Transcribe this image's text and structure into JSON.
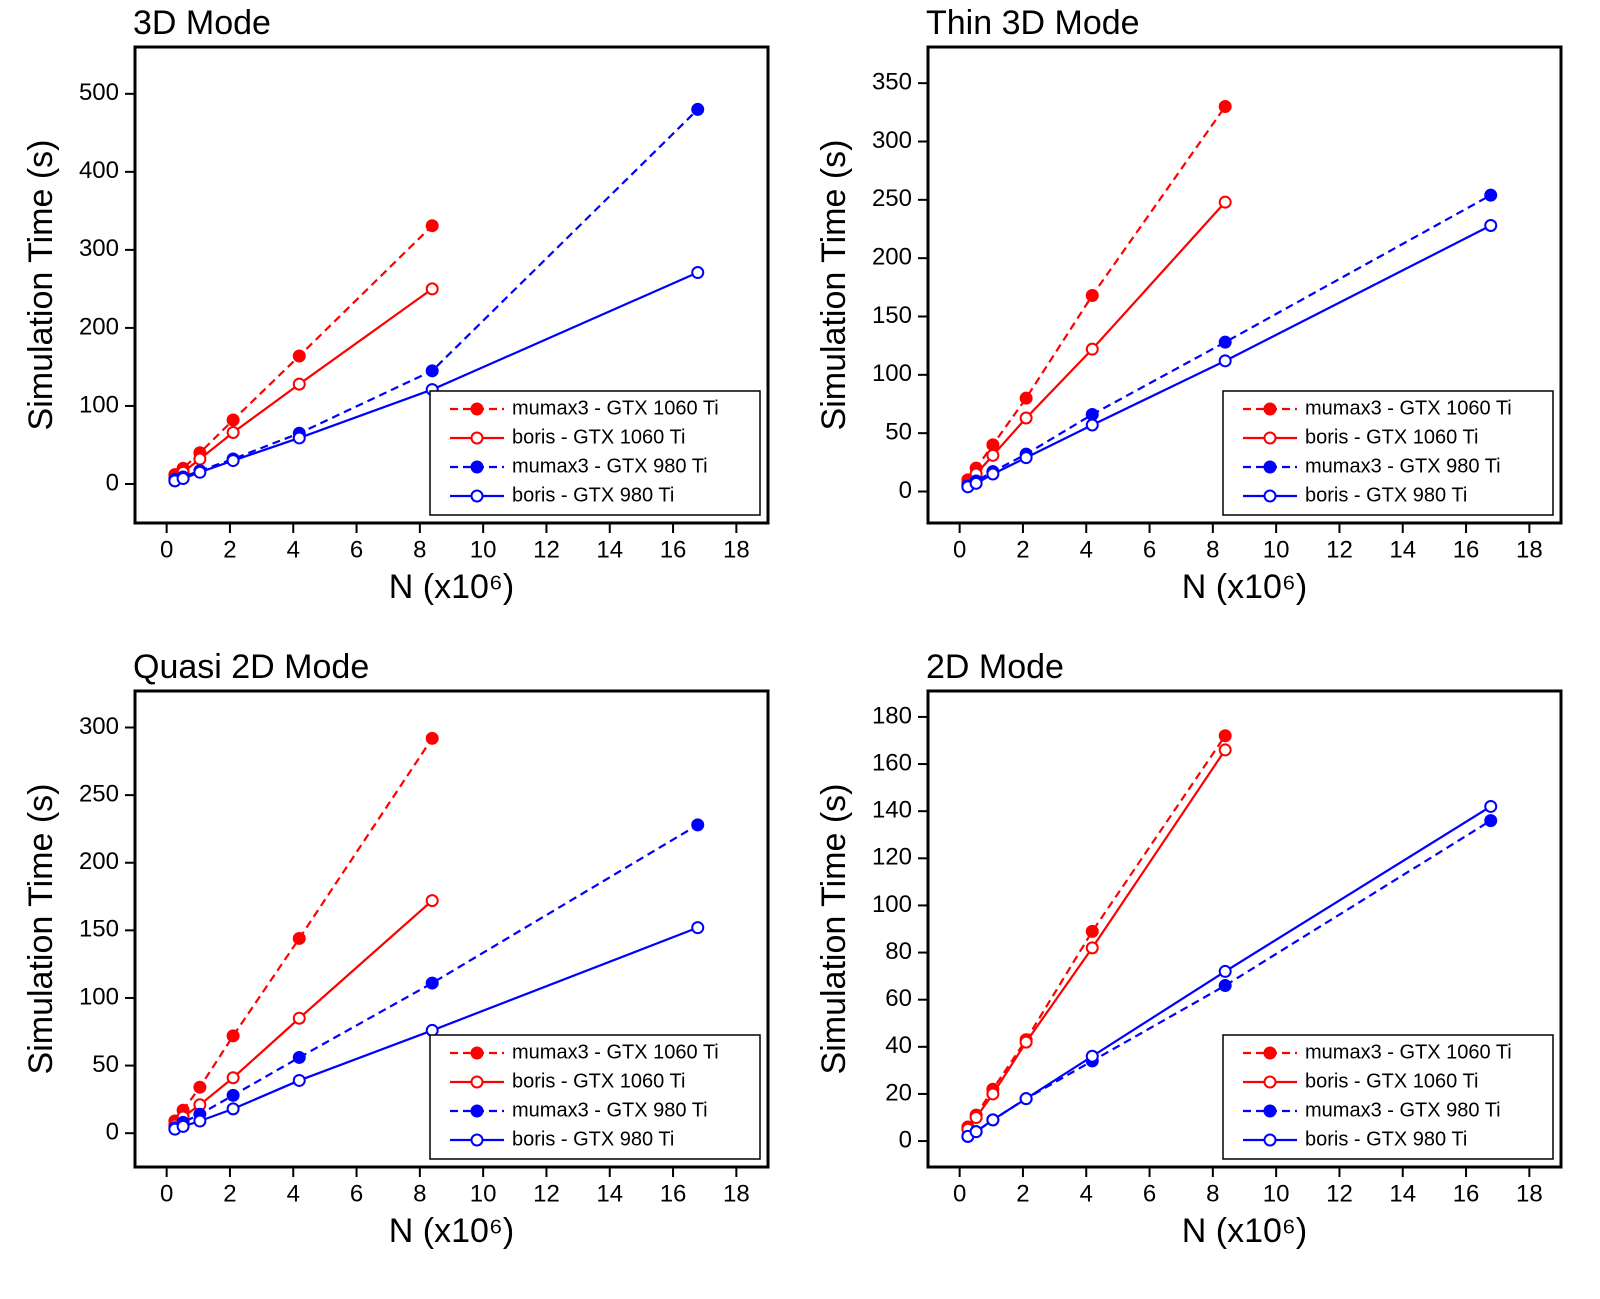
{
  "chart_data": [
    {
      "type": "line",
      "title": "3D Mode",
      "x_label": "N (x10⁶)",
      "y_label": "Simulation Time (s)",
      "x": [
        0.26,
        0.52,
        1.05,
        2.1,
        4.19,
        8.39,
        16.78
      ],
      "xlim": [
        -1,
        19
      ],
      "xticks": [
        0,
        2,
        4,
        6,
        8,
        10,
        12,
        14,
        16,
        18
      ],
      "ylim": [
        -50,
        560
      ],
      "yticks": [
        0,
        100,
        200,
        300,
        400,
        500
      ],
      "legend": "lower right",
      "series": [
        {
          "name": "mumax3 - GTX 1060 Ti",
          "color": "#ff0000",
          "linestyle": "dashed",
          "marker": "filled",
          "values": [
            12,
            20,
            40,
            82,
            164,
            331,
            null
          ]
        },
        {
          "name": "boris - GTX 1060 Ti",
          "color": "#ff0000",
          "linestyle": "solid",
          "marker": "open",
          "values": [
            8,
            15,
            32,
            66,
            128,
            250,
            null
          ]
        },
        {
          "name": "mumax3 - GTX 980 Ti",
          "color": "#0000ff",
          "linestyle": "dashed",
          "marker": "filled",
          "values": [
            6,
            9,
            17,
            32,
            65,
            145,
            480
          ]
        },
        {
          "name": "boris - GTX 980 Ti",
          "color": "#0000ff",
          "linestyle": "solid",
          "marker": "open",
          "values": [
            4,
            7,
            15,
            30,
            59,
            121,
            271
          ]
        }
      ]
    },
    {
      "type": "line",
      "title": "Thin 3D Mode",
      "x_label": "N (x10⁶)",
      "y_label": "Simulation Time (s)",
      "x": [
        0.26,
        0.52,
        1.05,
        2.1,
        4.19,
        8.39,
        16.78
      ],
      "xlim": [
        -1,
        19
      ],
      "xticks": [
        0,
        2,
        4,
        6,
        8,
        10,
        12,
        14,
        16,
        18
      ],
      "ylim": [
        -27,
        381
      ],
      "yticks": [
        0,
        50,
        100,
        150,
        200,
        250,
        300,
        350
      ],
      "legend": "lower right",
      "series": [
        {
          "name": "mumax3 - GTX 1060 Ti",
          "color": "#ff0000",
          "linestyle": "dashed",
          "marker": "filled",
          "values": [
            10,
            20,
            40,
            80,
            168,
            330,
            null
          ]
        },
        {
          "name": "boris - GTX 1060 Ti",
          "color": "#ff0000",
          "linestyle": "solid",
          "marker": "open",
          "values": [
            7,
            15,
            31,
            63,
            122,
            248,
            null
          ]
        },
        {
          "name": "mumax3 - GTX 980 Ti",
          "color": "#0000ff",
          "linestyle": "dashed",
          "marker": "filled",
          "values": [
            5,
            9,
            17,
            32,
            66,
            128,
            254
          ]
        },
        {
          "name": "boris - GTX 980 Ti",
          "color": "#0000ff",
          "linestyle": "solid",
          "marker": "open",
          "values": [
            4,
            7,
            15,
            29,
            57,
            112,
            228
          ]
        }
      ]
    },
    {
      "type": "line",
      "title": "Quasi 2D Mode",
      "x_label": "N (x10⁶)",
      "y_label": "Simulation Time (s)",
      "x": [
        0.26,
        0.52,
        1.05,
        2.1,
        4.19,
        8.39,
        16.78
      ],
      "xlim": [
        -1,
        19
      ],
      "xticks": [
        0,
        2,
        4,
        6,
        8,
        10,
        12,
        14,
        16,
        18
      ],
      "ylim": [
        -25,
        327
      ],
      "yticks": [
        0,
        50,
        100,
        150,
        200,
        250,
        300
      ],
      "legend": "lower right",
      "series": [
        {
          "name": "mumax3 - GTX 1060 Ti",
          "color": "#ff0000",
          "linestyle": "dashed",
          "marker": "filled",
          "values": [
            9,
            17,
            34,
            72,
            144,
            292,
            null
          ]
        },
        {
          "name": "boris - GTX 1060 Ti",
          "color": "#ff0000",
          "linestyle": "solid",
          "marker": "open",
          "values": [
            6,
            12,
            21,
            41,
            85,
            172,
            null
          ]
        },
        {
          "name": "mumax3 - GTX 980 Ti",
          "color": "#0000ff",
          "linestyle": "dashed",
          "marker": "filled",
          "values": [
            4,
            8,
            14,
            28,
            56,
            111,
            228
          ]
        },
        {
          "name": "boris - GTX 980 Ti",
          "color": "#0000ff",
          "linestyle": "solid",
          "marker": "open",
          "values": [
            3,
            5,
            9,
            18,
            39,
            76,
            152
          ]
        }
      ]
    },
    {
      "type": "line",
      "title": "2D Mode",
      "x_label": "N (x10⁶)",
      "y_label": "Simulation Time (s)",
      "x": [
        0.26,
        0.52,
        1.05,
        2.1,
        4.19,
        8.39,
        16.78
      ],
      "xlim": [
        -1,
        19
      ],
      "xticks": [
        0,
        2,
        4,
        6,
        8,
        10,
        12,
        14,
        16,
        18
      ],
      "ylim": [
        -11,
        191
      ],
      "yticks": [
        0,
        20,
        40,
        60,
        80,
        100,
        120,
        140,
        160,
        180
      ],
      "legend": "lower right",
      "series": [
        {
          "name": "mumax3 - GTX 1060 Ti",
          "color": "#ff0000",
          "linestyle": "dashed",
          "marker": "filled",
          "values": [
            6,
            11,
            22,
            43,
            89,
            172,
            null
          ]
        },
        {
          "name": "boris - GTX 1060 Ti",
          "color": "#ff0000",
          "linestyle": "solid",
          "marker": "open",
          "values": [
            5,
            10,
            20,
            42,
            82,
            166,
            null
          ]
        },
        {
          "name": "mumax3 - GTX 980 Ti",
          "color": "#0000ff",
          "linestyle": "dashed",
          "marker": "filled",
          "values": [
            2,
            4,
            9,
            18,
            34,
            66,
            136
          ]
        },
        {
          "name": "boris - GTX 980 Ti",
          "color": "#0000ff",
          "linestyle": "solid",
          "marker": "open",
          "values": [
            2,
            4,
            9,
            18,
            36,
            72,
            142
          ]
        }
      ]
    }
  ]
}
